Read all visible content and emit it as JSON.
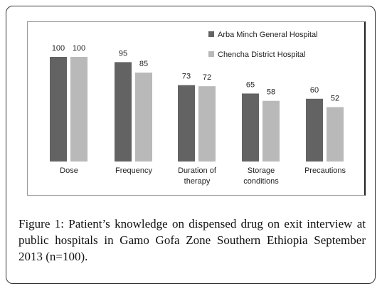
{
  "chart_data": {
    "type": "bar",
    "categories": [
      "Dose",
      "Frequency",
      "Duration of therapy",
      "Storage conditions",
      "Precautions"
    ],
    "series": [
      {
        "name": "Arba Minch General Hospital",
        "color": "#636363",
        "values": [
          100,
          95,
          73,
          65,
          60
        ]
      },
      {
        "name": "Chencha District Hospital",
        "color": "#b9b9b9",
        "values": [
          100,
          85,
          72,
          58,
          52
        ]
      }
    ],
    "legend": "top-right"
  },
  "caption": {
    "label": "Figure 1:",
    "text": "Patient’s knowledge on dispensed drug on exit interview at public hospitals in Gamo Gofa Zone Southern Ethiopia September 2013 (n=100)."
  }
}
